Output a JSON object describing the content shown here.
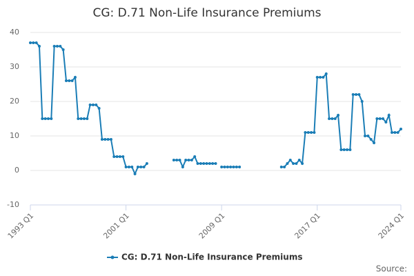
{
  "chart_data": {
    "type": "line",
    "title": "CG: D.71 Non-Life Insurance Premiums",
    "categories": [
      "1993 Q1",
      null,
      null,
      null,
      null,
      null,
      null,
      null,
      null,
      null,
      null,
      null,
      null,
      null,
      null,
      null,
      null,
      null,
      null,
      null,
      null,
      null,
      null,
      null,
      null,
      null,
      null,
      null,
      null,
      null,
      null,
      null,
      "2001 Q1",
      null,
      null,
      null,
      null,
      null,
      null,
      null,
      null,
      null,
      null,
      null,
      null,
      null,
      null,
      null,
      null,
      null,
      null,
      null,
      null,
      null,
      null,
      null,
      null,
      null,
      null,
      null,
      null,
      null,
      null,
      null,
      "2009 Q1",
      null,
      null,
      null,
      null,
      null,
      null,
      null,
      null,
      null,
      null,
      null,
      null,
      null,
      null,
      null,
      null,
      null,
      null,
      null,
      null,
      null,
      null,
      null,
      null,
      null,
      null,
      null,
      null,
      null,
      null,
      null,
      "2017 Q1",
      null,
      null,
      null,
      null,
      null,
      null,
      null,
      null,
      null,
      null,
      null,
      null,
      null,
      null,
      null,
      null,
      null,
      null,
      null,
      null,
      null,
      null,
      null,
      null,
      null,
      null,
      null,
      "2024 Q1"
    ],
    "series": [
      {
        "name": "CG: D.71 Non-Life Insurance Premiums",
        "color": "#1a7db6",
        "values": [
          37,
          37,
          37,
          36,
          15,
          15,
          15,
          15,
          36,
          36,
          36,
          35,
          26,
          26,
          26,
          27,
          15,
          15,
          15,
          15,
          19,
          19,
          19,
          18,
          9,
          9,
          9,
          9,
          4,
          4,
          4,
          4,
          1,
          1,
          1,
          -1,
          1,
          1,
          1,
          2,
          null,
          null,
          null,
          null,
          null,
          null,
          null,
          null,
          3,
          3,
          3,
          1,
          3,
          3,
          3,
          4,
          2,
          2,
          2,
          2,
          2,
          2,
          2,
          null,
          1,
          1,
          1,
          1,
          1,
          1,
          1,
          null,
          null,
          null,
          null,
          null,
          null,
          null,
          null,
          null,
          null,
          null,
          null,
          null,
          1,
          1,
          2,
          3,
          2,
          2,
          3,
          2,
          11,
          11,
          11,
          11,
          27,
          27,
          27,
          28,
          15,
          15,
          15,
          16,
          6,
          6,
          6,
          6,
          22,
          22,
          22,
          20,
          10,
          10,
          9,
          8,
          15,
          15,
          15,
          14,
          16,
          11,
          11,
          11,
          12
        ]
      }
    ],
    "ylim": [
      -10,
      40
    ],
    "yticks": [
      -10,
      0,
      10,
      20,
      30,
      40
    ],
    "grid": true,
    "source": "Source:"
  }
}
